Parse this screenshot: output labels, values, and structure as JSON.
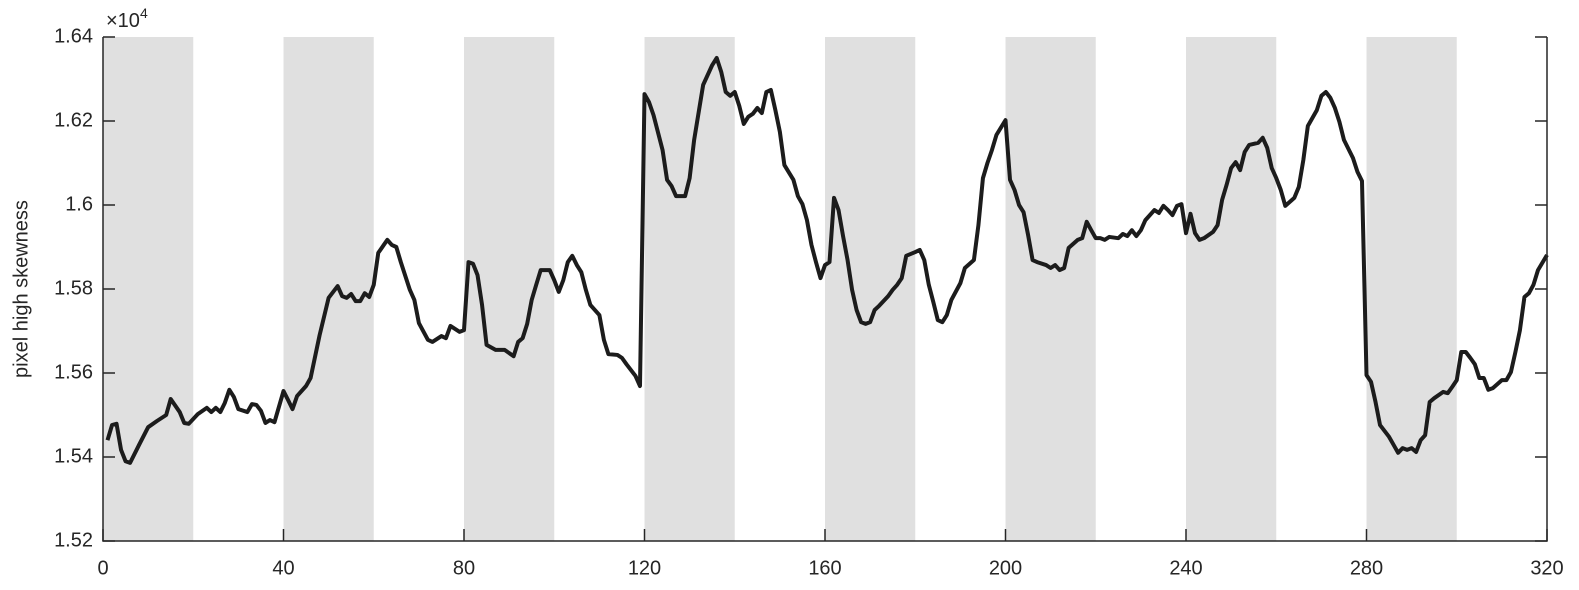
{
  "chart_data": {
    "type": "line",
    "y_label": "pixel high skewness",
    "y_exponent": {
      "base": "×10",
      "power": "4"
    },
    "xlim": [
      0,
      320
    ],
    "xticks": [
      0,
      40,
      80,
      120,
      160,
      200,
      240,
      280,
      320
    ],
    "ylim": [
      15200,
      16400
    ],
    "yticks": [
      {
        "value": 15200,
        "label": "1.52"
      },
      {
        "value": 15400,
        "label": "1.54"
      },
      {
        "value": 15600,
        "label": "1.56"
      },
      {
        "value": 15800,
        "label": "1.58"
      },
      {
        "value": 16000,
        "label": "1.6"
      },
      {
        "value": 16200,
        "label": "1.62"
      },
      {
        "value": 16400,
        "label": "1.64"
      }
    ],
    "bands": [
      [
        0,
        20
      ],
      [
        40,
        60
      ],
      [
        80,
        100
      ],
      [
        120,
        140
      ],
      [
        160,
        180
      ],
      [
        200,
        220
      ],
      [
        240,
        260
      ],
      [
        280,
        300
      ]
    ],
    "band_color": "#e0e0e0",
    "series": [
      {
        "color": "#1c1c1c",
        "x": [
          1,
          2,
          3,
          4,
          5,
          6,
          8,
          10,
          12,
          14,
          15,
          17,
          18,
          19,
          21,
          23,
          24,
          25,
          26,
          27,
          28,
          29,
          30,
          32,
          33,
          34,
          35,
          36,
          37,
          38,
          40,
          41,
          42,
          43,
          45,
          46,
          48,
          50,
          52,
          53,
          54,
          55,
          56,
          57,
          58,
          59,
          60,
          61,
          63,
          64,
          65,
          66,
          68,
          69,
          70,
          72,
          73,
          75,
          76,
          77,
          79,
          80,
          81,
          82,
          83,
          84,
          85,
          87,
          89,
          91,
          92,
          93,
          94,
          95,
          96,
          97,
          99,
          100,
          101,
          102,
          103,
          104,
          105,
          106,
          107,
          108,
          110,
          111,
          112,
          114,
          115,
          116,
          118,
          119,
          120,
          121,
          122,
          124,
          125,
          126,
          127,
          129,
          130,
          131,
          133,
          135,
          136,
          137,
          138,
          139,
          140,
          141,
          142,
          143,
          144,
          145,
          146,
          147,
          148,
          149,
          150,
          151,
          153,
          154,
          155,
          156,
          157,
          158,
          159,
          160,
          161,
          162,
          163,
          164,
          165,
          166,
          167,
          168,
          169,
          170,
          171,
          172,
          174,
          175,
          176,
          177,
          178,
          180,
          181,
          182,
          183,
          184,
          185,
          186,
          187,
          188,
          190,
          191,
          193,
          194,
          195,
          196,
          197,
          198,
          200,
          201,
          202,
          203,
          204,
          205,
          206,
          207,
          209,
          210,
          211,
          212,
          213,
          214,
          216,
          217,
          218,
          219,
          220,
          221,
          222,
          223,
          225,
          226,
          227,
          228,
          229,
          230,
          231,
          233,
          234,
          235,
          236,
          237,
          238,
          239,
          240,
          241,
          242,
          243,
          244,
          246,
          247,
          248,
          249,
          250,
          251,
          252,
          253,
          254,
          256,
          257,
          258,
          259,
          260,
          261,
          262,
          264,
          265,
          266,
          267,
          269,
          270,
          271,
          272,
          273,
          274,
          275,
          277,
          278,
          279,
          280,
          281,
          282,
          283,
          285,
          286,
          287,
          288,
          289,
          290,
          291,
          292,
          293,
          294,
          295,
          297,
          298,
          299,
          300,
          301,
          302,
          303,
          304,
          305,
          306,
          307,
          308,
          310,
          311,
          312,
          313,
          314,
          315,
          316,
          317,
          318,
          320
        ],
        "values": [
          15440,
          15476,
          15479,
          15417,
          15390,
          15386,
          15429,
          15471,
          15486,
          15500,
          15538,
          15507,
          15481,
          15479,
          15502,
          15517,
          15507,
          15517,
          15507,
          15529,
          15560,
          15543,
          15514,
          15507,
          15526,
          15524,
          15510,
          15481,
          15488,
          15483,
          15557,
          15536,
          15514,
          15545,
          15569,
          15588,
          15690,
          15779,
          15807,
          15783,
          15779,
          15788,
          15771,
          15771,
          15790,
          15781,
          15810,
          15886,
          15917,
          15905,
          15900,
          15864,
          15798,
          15774,
          15719,
          15679,
          15674,
          15688,
          15683,
          15712,
          15698,
          15702,
          15864,
          15860,
          15833,
          15762,
          15667,
          15655,
          15655,
          15640,
          15674,
          15683,
          15717,
          15774,
          15810,
          15845,
          15845,
          15821,
          15793,
          15821,
          15864,
          15879,
          15857,
          15840,
          15798,
          15762,
          15738,
          15679,
          15645,
          15643,
          15636,
          15621,
          15593,
          15569,
          16264,
          16245,
          16214,
          16131,
          16060,
          16045,
          16021,
          16021,
          16064,
          16155,
          16286,
          16333,
          16350,
          16317,
          16269,
          16260,
          16269,
          16236,
          16193,
          16210,
          16217,
          16231,
          16219,
          16269,
          16274,
          16226,
          16174,
          16095,
          16060,
          16021,
          16002,
          15964,
          15905,
          15864,
          15826,
          15857,
          15864,
          16017,
          15988,
          15926,
          15869,
          15798,
          15750,
          15721,
          15717,
          15721,
          15750,
          15760,
          15783,
          15798,
          15810,
          15826,
          15879,
          15888,
          15893,
          15869,
          15810,
          15769,
          15726,
          15721,
          15738,
          15774,
          15814,
          15850,
          15869,
          15952,
          16064,
          16100,
          16131,
          16167,
          16202,
          16060,
          16036,
          16000,
          15983,
          15929,
          15869,
          15864,
          15857,
          15850,
          15857,
          15845,
          15850,
          15898,
          15917,
          15921,
          15960,
          15940,
          15921,
          15921,
          15917,
          15924,
          15921,
          15931,
          15926,
          15940,
          15926,
          15940,
          15964,
          15988,
          15981,
          15998,
          15988,
          15976,
          15998,
          16002,
          15933,
          15979,
          15933,
          15917,
          15921,
          15936,
          15952,
          16012,
          16048,
          16088,
          16102,
          16083,
          16126,
          16143,
          16148,
          16160,
          16136,
          16088,
          16064,
          16036,
          15998,
          16017,
          16043,
          16107,
          16188,
          16226,
          16260,
          16269,
          16255,
          16231,
          16198,
          16155,
          16112,
          16079,
          16057,
          15595,
          15579,
          15531,
          15476,
          15448,
          15429,
          15410,
          15421,
          15417,
          15421,
          15412,
          15440,
          15452,
          15531,
          15540,
          15555,
          15552,
          15567,
          15583,
          15650,
          15650,
          15636,
          15621,
          15588,
          15588,
          15560,
          15564,
          15583,
          15583,
          15602,
          15650,
          15702,
          15781,
          15790,
          15810,
          15845,
          15881
        ]
      }
    ]
  }
}
